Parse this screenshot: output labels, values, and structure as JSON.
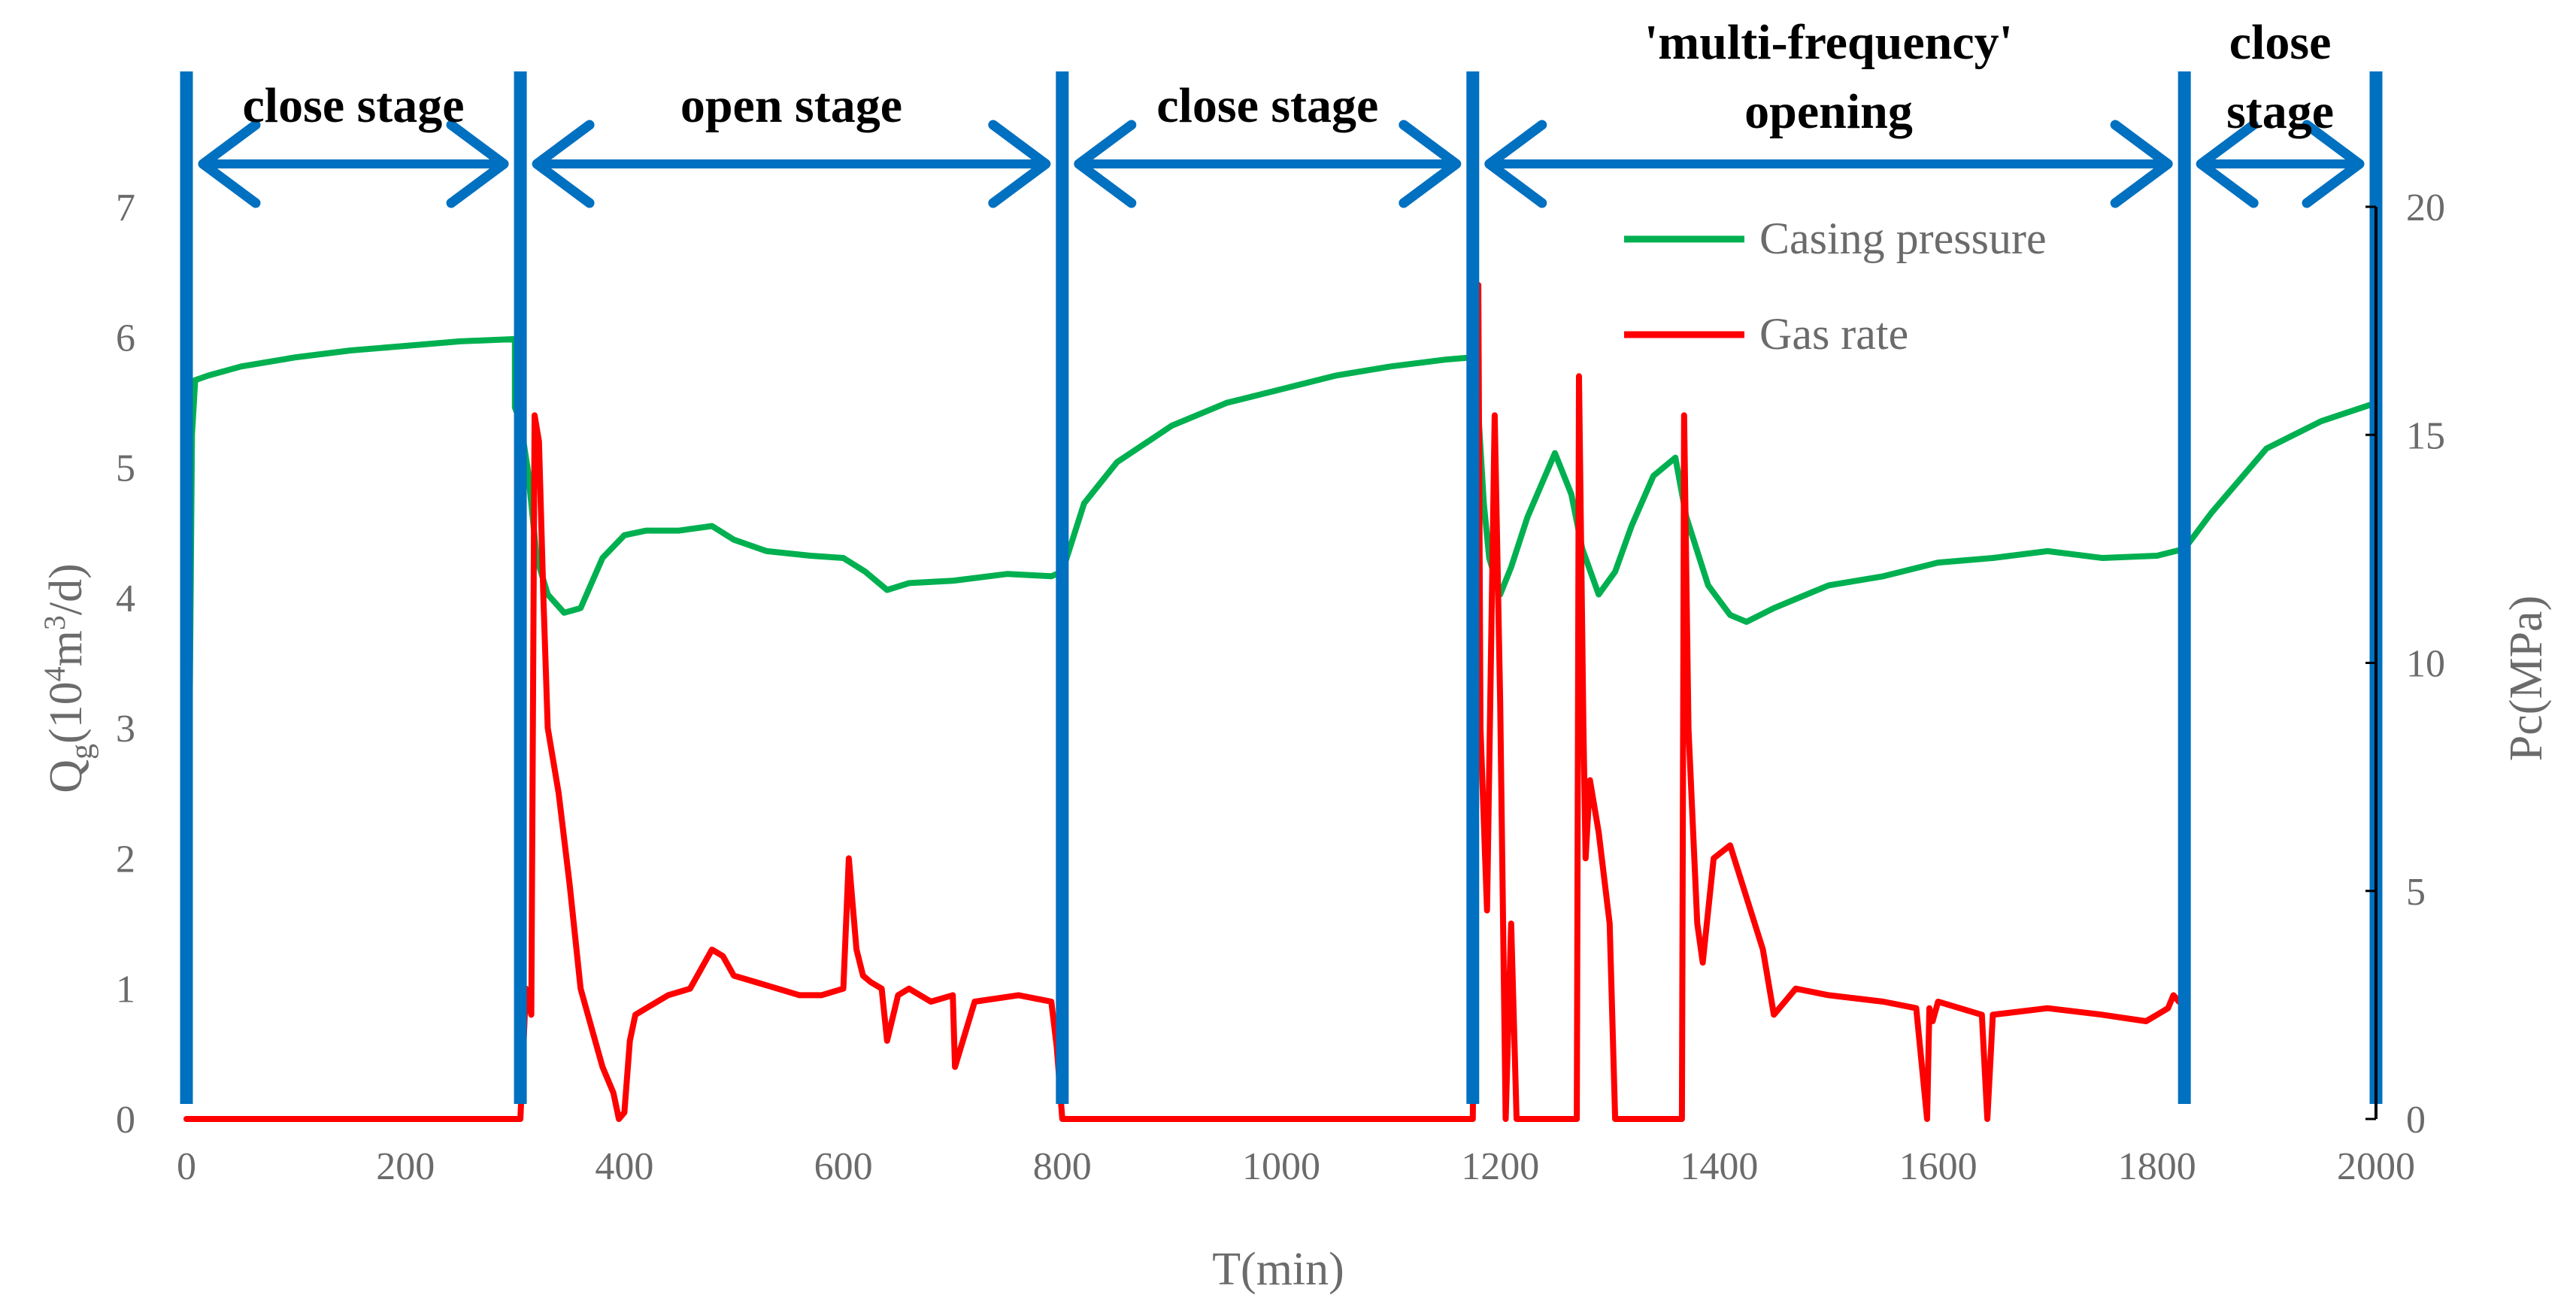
{
  "chart_data": {
    "type": "line",
    "xlabel": "T(min)",
    "ylabel_left": "Q",
    "ylabel_left_sub": "g",
    "ylabel_left_unit_prefix": "(10",
    "ylabel_left_unit_sup4": "4",
    "ylabel_left_unit_mid": "m",
    "ylabel_left_unit_sup3": "3",
    "ylabel_left_unit_suffix": "/d)",
    "ylabel_right": "Pc(MPa)",
    "xlim": [
      0,
      2000
    ],
    "ylim_left": [
      0,
      7
    ],
    "ylim_right": [
      0,
      20
    ],
    "x_ticks": [
      0,
      200,
      400,
      600,
      800,
      1000,
      1200,
      1400,
      1600,
      1800,
      2000
    ],
    "y_left_ticks": [
      0,
      1,
      2,
      3,
      4,
      5,
      6,
      7
    ],
    "y_right_ticks": [
      0,
      5,
      10,
      15,
      20
    ],
    "stage_boundaries": [
      0,
      305,
      800,
      1175,
      1825,
      2000
    ],
    "stages": [
      {
        "lines": [
          "close stage"
        ],
        "from": 0,
        "to": 305
      },
      {
        "lines": [
          "open stage"
        ],
        "from": 305,
        "to": 800
      },
      {
        "lines": [
          "close stage"
        ],
        "from": 800,
        "to": 1175
      },
      {
        "lines": [
          "'multi-frequency'",
          "opening"
        ],
        "from": 1175,
        "to": 1825
      },
      {
        "lines": [
          "close",
          "stage"
        ],
        "from": 1825,
        "to": 2000
      }
    ],
    "series": [
      {
        "name": "Casing pressure",
        "axis": "right",
        "color": "#00b050",
        "x": [
          0,
          5,
          8,
          20,
          50,
          100,
          150,
          200,
          250,
          300,
          300,
          305,
          312,
          320,
          330,
          345,
          360,
          380,
          400,
          420,
          450,
          480,
          500,
          530,
          570,
          600,
          620,
          640,
          660,
          700,
          750,
          790,
          800,
          820,
          850,
          900,
          950,
          1000,
          1050,
          1100,
          1150,
          1175,
          1180,
          1185,
          1190,
          1200,
          1210,
          1225,
          1250,
          1265,
          1275,
          1290,
          1305,
          1320,
          1340,
          1360,
          1370,
          1390,
          1410,
          1425,
          1450,
          1500,
          1550,
          1600,
          1650,
          1700,
          1750,
          1800,
          1825,
          1850,
          1900,
          1950,
          2000
        ],
        "y": [
          0.4,
          15.0,
          16.2,
          16.3,
          16.5,
          16.7,
          16.85,
          16.95,
          17.05,
          17.1,
          15.6,
          15.3,
          14.2,
          12.3,
          11.5,
          11.1,
          11.2,
          12.3,
          12.8,
          12.9,
          12.9,
          13.0,
          12.7,
          12.45,
          12.35,
          12.3,
          12.0,
          11.6,
          11.75,
          11.8,
          11.95,
          11.9,
          12.0,
          13.5,
          14.4,
          15.2,
          15.7,
          16.0,
          16.3,
          16.5,
          16.65,
          16.7,
          15.5,
          13.5,
          12.3,
          11.5,
          12.1,
          13.2,
          14.6,
          13.7,
          12.5,
          11.5,
          12.0,
          13.0,
          14.1,
          14.5,
          13.2,
          11.7,
          11.05,
          10.9,
          11.2,
          11.7,
          11.9,
          12.2,
          12.3,
          12.45,
          12.3,
          12.35,
          12.5,
          13.3,
          14.7,
          15.3,
          15.7
        ]
      },
      {
        "name": "Gas rate",
        "axis": "left",
        "color": "#ff0000",
        "x": [
          0,
          300,
          305,
          310,
          315,
          318,
          322,
          326,
          330,
          340,
          350,
          360,
          370,
          380,
          390,
          395,
          400,
          405,
          410,
          420,
          440,
          460,
          480,
          490,
          500,
          520,
          540,
          560,
          580,
          600,
          605,
          608,
          612,
          618,
          625,
          635,
          640,
          650,
          660,
          680,
          700,
          702,
          720,
          760,
          790,
          795,
          800,
          805,
          1175,
          1180,
          1182,
          1188,
          1195,
          1200,
          1205,
          1210,
          1215,
          1230,
          1260,
          1270,
          1272,
          1276,
          1278,
          1282,
          1290,
          1300,
          1305,
          1310,
          1350,
          1366,
          1368,
          1372,
          1380,
          1385,
          1395,
          1410,
          1440,
          1450,
          1470,
          1500,
          1550,
          1580,
          1590,
          1592,
          1595,
          1600,
          1640,
          1645,
          1650,
          1700,
          1750,
          1790,
          1800,
          1810,
          1815,
          1820
        ],
        "y": [
          0,
          0,
          0,
          1.0,
          0.8,
          5.4,
          5.2,
          4.0,
          3.0,
          2.5,
          1.8,
          1.0,
          0.7,
          0.4,
          0.2,
          0.0,
          0.05,
          0.6,
          0.8,
          0.85,
          0.95,
          1.0,
          1.3,
          1.25,
          1.1,
          1.05,
          1.0,
          0.95,
          0.95,
          1.0,
          2.0,
          1.7,
          1.3,
          1.1,
          1.05,
          1.0,
          0.6,
          0.95,
          1.0,
          0.9,
          0.95,
          0.4,
          0.9,
          0.95,
          0.9,
          0.55,
          0.0,
          0.0,
          0.0,
          6.4,
          3.0,
          1.6,
          5.4,
          3.2,
          0.0,
          1.5,
          0.0,
          0.0,
          0.0,
          0.0,
          5.7,
          3.0,
          2.0,
          2.6,
          2.2,
          1.5,
          0.0,
          0.0,
          0.0,
          0.0,
          5.4,
          3.0,
          1.5,
          1.2,
          2.0,
          2.1,
          1.3,
          0.8,
          1.0,
          0.95,
          0.9,
          0.85,
          0.0,
          0.85,
          0.75,
          0.9,
          0.8,
          0.0,
          0.8,
          0.85,
          0.8,
          0.75,
          0.8,
          0.85,
          0.95,
          0.9
        ]
      }
    ]
  }
}
